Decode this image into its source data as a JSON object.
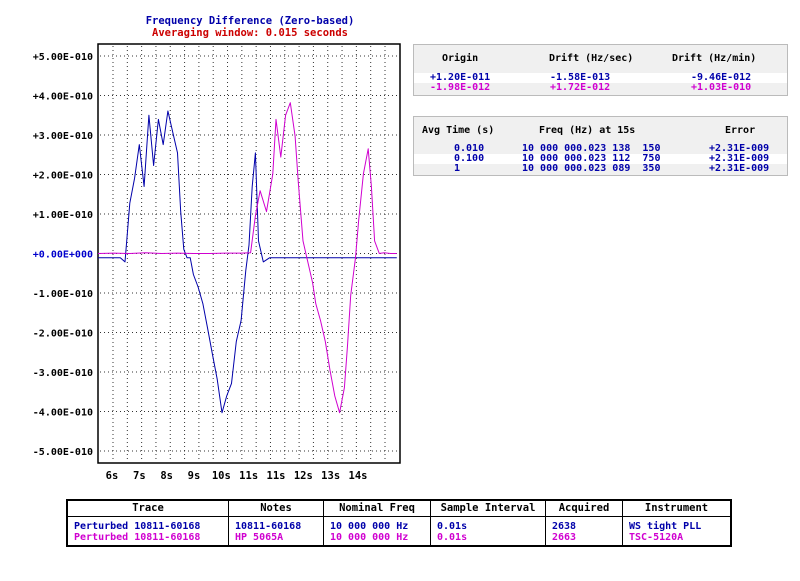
{
  "colors": {
    "series_a": "#0000aa",
    "series_b": "#d000d0",
    "title": "#0000aa",
    "subtitle": "#cc0000",
    "zero_label": "#0000cc"
  },
  "chart_data": {
    "type": "line",
    "title": "Frequency Difference (Zero-based)",
    "subtitle": "Averaging window: 0.015 seconds",
    "xlabel": "",
    "ylabel": "",
    "xlim": [
      6,
      15.5
    ],
    "ylim": [
      -5e-10,
      5e-10
    ],
    "x_ticks": [
      "6s",
      "7s",
      "8s",
      "9s",
      "10s",
      "11s",
      "11s",
      "12s",
      "13s",
      "14s"
    ],
    "y_ticks": [
      "+5.00E-010",
      "+4.00E-010",
      "+3.00E-010",
      "+2.00E-010",
      "+1.00E-010",
      "+0.00E+000",
      "-1.00E-010",
      "-2.00E-010",
      "-3.00E-010",
      "-4.00E-010",
      "-5.00E-010"
    ],
    "grid": true,
    "series": [
      {
        "name": "Perturbed 10811-60168",
        "color": "#0000aa",
        "x": [
          6.0,
          6.7,
          6.85,
          7.0,
          7.15,
          7.3,
          7.45,
          7.6,
          7.75,
          7.9,
          8.05,
          8.2,
          8.35,
          8.5,
          8.6,
          8.7,
          8.8,
          8.9,
          9.0,
          9.15,
          9.3,
          9.45,
          9.6,
          9.75,
          9.9,
          10.05,
          10.2,
          10.35,
          10.5,
          10.65,
          10.75,
          10.85,
          10.95,
          11.05,
          11.2,
          11.4,
          11.7,
          12.0,
          12.5,
          13.0,
          13.5,
          14.0,
          14.5,
          15.0,
          15.4
        ],
        "y": [
          -1e-11,
          -1e-11,
          -2e-11,
          1.2e-10,
          1.8e-10,
          2.6e-10,
          1.6e-10,
          3.3e-10,
          2.1e-10,
          3.2e-10,
          2.6e-10,
          3.4e-10,
          2.9e-10,
          2.4e-10,
          1e-10,
          1e-11,
          -1e-11,
          -1e-11,
          -5e-11,
          -8e-11,
          -1.2e-10,
          -1.8e-10,
          -2.4e-10,
          -3e-10,
          -3.8e-10,
          -3.4e-10,
          -3.1e-10,
          -2.1e-10,
          -1.6e-10,
          -4e-11,
          2e-11,
          1.6e-10,
          2.4e-10,
          3e-11,
          -2e-11,
          -1e-11,
          -1e-11,
          -1e-11,
          -1e-11,
          -1e-11,
          -1e-11,
          -1e-11,
          -1e-11,
          -1e-11,
          -1e-11
        ]
      },
      {
        "name": "Perturbed 10811-60168",
        "color": "#d000d0",
        "x": [
          6.0,
          6.5,
          7.0,
          7.5,
          8.0,
          8.5,
          9.0,
          9.5,
          10.0,
          10.5,
          10.8,
          10.95,
          11.1,
          11.3,
          11.5,
          11.6,
          11.75,
          11.9,
          12.05,
          12.2,
          12.3,
          12.45,
          12.6,
          12.75,
          12.85,
          13.0,
          13.15,
          13.3,
          13.45,
          13.6,
          13.75,
          13.85,
          13.95,
          14.1,
          14.2,
          14.35,
          14.5,
          14.6,
          14.7,
          14.85,
          15.0,
          15.2,
          15.4
        ],
        "y": [
          0.0,
          1e-12,
          0.0,
          2e-12,
          0.0,
          1e-12,
          0.0,
          0.0,
          1e-12,
          1e-12,
          2e-12,
          9e-11,
          1.5e-10,
          1e-10,
          1.9e-10,
          3.2e-10,
          2.3e-10,
          3.3e-10,
          3.6e-10,
          2.8e-10,
          1.7e-10,
          3e-11,
          -2e-11,
          -7e-11,
          -1.2e-10,
          -1.6e-10,
          -2.1e-10,
          -2.8e-10,
          -3.4e-10,
          -3.8e-10,
          -3.2e-10,
          -2.2e-10,
          -1e-10,
          -1e-11,
          8e-11,
          1.9e-10,
          2.5e-10,
          1.6e-10,
          3e-11,
          0.0,
          2e-12,
          0.0,
          0.0
        ]
      }
    ]
  },
  "drift_panel": {
    "headers": [
      "Origin",
      "Drift (Hz/sec)",
      "Drift (Hz/min)"
    ],
    "rows": [
      {
        "origin": "+1.20E-011",
        "hz_sec": "-1.58E-013",
        "hz_min": "-9.46E-012",
        "color": "#0000aa"
      },
      {
        "origin": "-1.98E-012",
        "hz_sec": "+1.72E-012",
        "hz_min": "+1.03E-010",
        "color": "#d000d0"
      }
    ]
  },
  "avg_panel": {
    "headers": [
      "Avg Time (s)",
      "Freq (Hz) at 15s",
      "Error"
    ],
    "rows": [
      {
        "avg": "0.010",
        "freq": "10 000 000.023 138  150",
        "err": "+2.31E-009"
      },
      {
        "avg": "0.100",
        "freq": "10 000 000.023 112  750",
        "err": "+2.31E-009"
      },
      {
        "avg": "1",
        "freq": "10 000 000.023 089  350",
        "err": "+2.31E-009"
      }
    ]
  },
  "info_table": {
    "headers": [
      "Trace",
      "Notes",
      "Nominal Freq",
      "Sample Interval",
      "Acquired",
      "Instrument"
    ],
    "rows": [
      {
        "trace": "Perturbed 10811-60168",
        "notes": "10811-60168",
        "freq": "10 000 000 Hz",
        "interval": "0.01s",
        "acquired": "2638",
        "instrument": "WS tight PLL",
        "color": "#0000aa"
      },
      {
        "trace": "Perturbed 10811-60168",
        "notes": "HP 5065A",
        "freq": "10 000 000 Hz",
        "interval": "0.01s",
        "acquired": "2663",
        "instrument": "TSC-5120A",
        "color": "#d000d0"
      }
    ]
  }
}
